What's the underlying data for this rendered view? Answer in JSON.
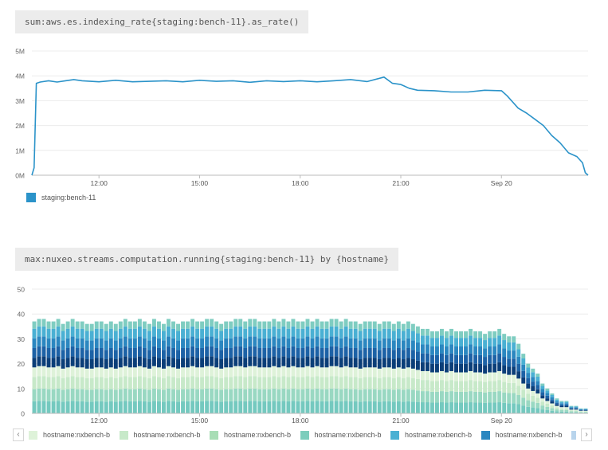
{
  "chart_data": [
    {
      "type": "line",
      "title": "sum:aws.es.indexing_rate{staging:bench-11}.as_rate()",
      "x_tick_labels": [
        "12:00",
        "15:00",
        "18:00",
        "21:00",
        "Sep 20"
      ],
      "y_tick_labels": [
        "0M",
        "1M",
        "2M",
        "3M",
        "4M",
        "5M"
      ],
      "ylim": [
        0,
        5000000
      ],
      "grid": true,
      "legend_position": "bottom-left",
      "series": [
        {
          "name": "staging:bench-11",
          "color": "#2b93c9",
          "points": [
            [
              "10:00",
              0
            ],
            [
              "10:04",
              300000
            ],
            [
              "10:08",
              3700000
            ],
            [
              "10:15",
              3750000
            ],
            [
              "10:30",
              3800000
            ],
            [
              "10:45",
              3750000
            ],
            [
              "11:00",
              3800000
            ],
            [
              "11:15",
              3850000
            ],
            [
              "11:30",
              3800000
            ],
            [
              "12:00",
              3760000
            ],
            [
              "12:30",
              3820000
            ],
            [
              "13:00",
              3760000
            ],
            [
              "13:30",
              3780000
            ],
            [
              "14:00",
              3800000
            ],
            [
              "14:30",
              3760000
            ],
            [
              "15:00",
              3820000
            ],
            [
              "15:30",
              3780000
            ],
            [
              "16:00",
              3800000
            ],
            [
              "16:30",
              3740000
            ],
            [
              "17:00",
              3800000
            ],
            [
              "17:30",
              3770000
            ],
            [
              "18:00",
              3800000
            ],
            [
              "18:30",
              3760000
            ],
            [
              "19:00",
              3800000
            ],
            [
              "19:30",
              3850000
            ],
            [
              "20:00",
              3770000
            ],
            [
              "20:30",
              3950000
            ],
            [
              "20:45",
              3700000
            ],
            [
              "21:00",
              3650000
            ],
            [
              "21:15",
              3500000
            ],
            [
              "21:30",
              3420000
            ],
            [
              "22:00",
              3400000
            ],
            [
              "22:30",
              3350000
            ],
            [
              "23:00",
              3350000
            ],
            [
              "23:30",
              3420000
            ],
            [
              "00:00",
              3400000
            ],
            [
              "00:10",
              3200000
            ],
            [
              "00:30",
              2700000
            ],
            [
              "00:45",
              2500000
            ],
            [
              "01:00",
              2250000
            ],
            [
              "01:15",
              2000000
            ],
            [
              "01:30",
              1600000
            ],
            [
              "01:45",
              1300000
            ],
            [
              "02:00",
              900000
            ],
            [
              "02:15",
              750000
            ],
            [
              "02:25",
              500000
            ],
            [
              "02:30",
              100000
            ],
            [
              "02:35",
              0
            ]
          ]
        }
      ]
    },
    {
      "type": "bar",
      "stacked": true,
      "title": "max:nuxeo.streams.computation.running{staging:bench-11} by {hostname}",
      "x_tick_labels": [
        "12:00",
        "15:00",
        "18:00",
        "21:00",
        "Sep 20"
      ],
      "y_tick_labels": [
        "0",
        "10",
        "20",
        "30",
        "40",
        "50"
      ],
      "ylim": [
        0,
        50
      ],
      "grid": true,
      "legend_position": "bottom",
      "x_range": [
        "10:00",
        "02:30"
      ],
      "bar_interval_minutes": 10,
      "series": [
        {
          "name": "hostname:nxbench-b",
          "color": "#74c9bf",
          "value": 5
        },
        {
          "name": "hostname:nxbench-b",
          "color": "#99d8c2",
          "value": 5
        },
        {
          "name": "hostname:nxbench-b",
          "color": "#c7e9c9",
          "value": 5
        },
        {
          "name": "hostname:nxbench-b",
          "color": "#def2d9",
          "value": 4
        },
        {
          "name": "hostname:nxbench-b",
          "color": "#0b3e78",
          "value": 4
        },
        {
          "name": "hostname:nxbench-b",
          "color": "#1d62a6",
          "value": 4
        },
        {
          "name": "hostname:nxbench-b",
          "color": "#2b87c0",
          "value": 4
        },
        {
          "name": "hostname:nxbench-b",
          "color": "#4ab0d3",
          "value": 4
        },
        {
          "name": "hostname:nxbench-b",
          "color": "#7fcdc1",
          "value": 3
        }
      ],
      "bar_totals": [
        37,
        38,
        38,
        37,
        37,
        38,
        36,
        37,
        38,
        37,
        37,
        36,
        36,
        37,
        37,
        36,
        37,
        36,
        37,
        38,
        37,
        37,
        38,
        37,
        36,
        38,
        37,
        36,
        38,
        37,
        36,
        37,
        37,
        38,
        37,
        37,
        38,
        38,
        37,
        36,
        37,
        37,
        38,
        38,
        37,
        38,
        38,
        37,
        37,
        37,
        38,
        37,
        38,
        37,
        38,
        37,
        37,
        38,
        37,
        38,
        37,
        37,
        38,
        38,
        37,
        38,
        37,
        37,
        36,
        37,
        37,
        37,
        36,
        37,
        37,
        36,
        37,
        36,
        37,
        36,
        35,
        34,
        34,
        33,
        33,
        34,
        33,
        34,
        33,
        33,
        33,
        34,
        33,
        33,
        32,
        33,
        33,
        34,
        32,
        31,
        31,
        28,
        24,
        20,
        18,
        16,
        12,
        10,
        8,
        6,
        5,
        5,
        3,
        3,
        2,
        2
      ],
      "legend_entries": [
        {
          "name": "hostname:nxbench-b",
          "color": "#def2d9"
        },
        {
          "name": "hostname:nxbench-b",
          "color": "#c7e9c9"
        },
        {
          "name": "hostname:nxbench-b",
          "color": "#a8ddb5"
        },
        {
          "name": "hostname:nxbench-b",
          "color": "#7ccdbc"
        },
        {
          "name": "hostname:nxbench-b",
          "color": "#4ab0d3"
        },
        {
          "name": "hostname:nxbench-b",
          "color": "#2b87c0"
        },
        {
          "name": "hostname:nxbench-b",
          "color": "#b8d4ec"
        }
      ],
      "legend_prev_icon": "chevron-left-icon",
      "legend_next_icon": "chevron-right-icon"
    }
  ]
}
